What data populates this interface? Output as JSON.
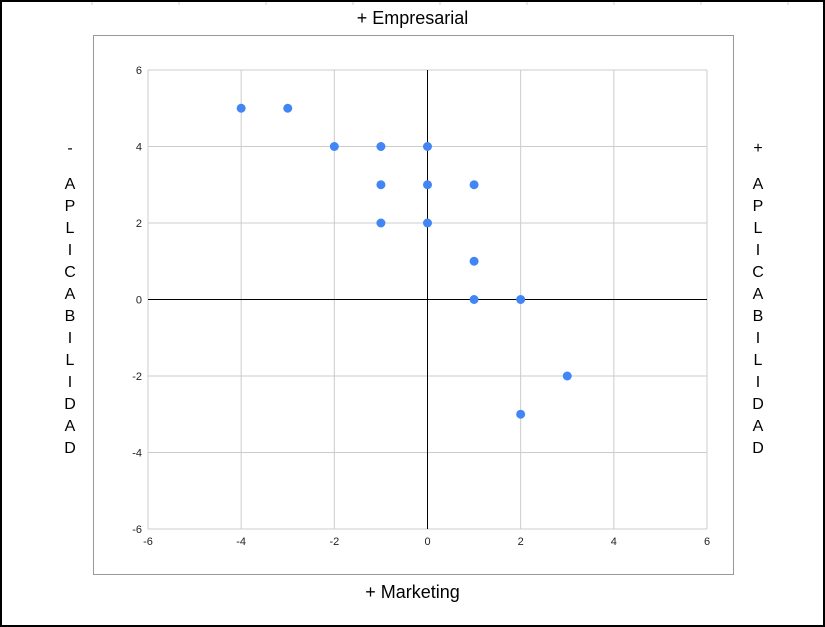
{
  "labels": {
    "top": "+ Empresarial",
    "bottom": "+ Marketing",
    "left_sign": "-",
    "right_sign": "+",
    "side_letters": [
      "A",
      "P",
      "L",
      "I",
      "C",
      "A",
      "B",
      "I",
      "L",
      "I",
      "D",
      "A",
      "D"
    ]
  },
  "colors": {
    "point": "#4285f4",
    "grid": "#cccccc",
    "axis": "#000000",
    "border": "#999999"
  },
  "chart_data": {
    "type": "scatter",
    "title": "",
    "xlabel": "",
    "ylabel": "",
    "xlim": [
      -6,
      6
    ],
    "ylim": [
      -6,
      6
    ],
    "x_ticks": [
      "-6",
      "-4",
      "-2",
      "0",
      "2",
      "4",
      "6"
    ],
    "y_ticks": [
      "-6",
      "-4",
      "-2",
      "0",
      "2",
      "4",
      "6"
    ],
    "grid": true,
    "legend": "none",
    "points": [
      {
        "x": -4,
        "y": 5
      },
      {
        "x": -3,
        "y": 5
      },
      {
        "x": -2,
        "y": 4
      },
      {
        "x": -1,
        "y": 4
      },
      {
        "x": 0,
        "y": 4
      },
      {
        "x": -1,
        "y": 3
      },
      {
        "x": 0,
        "y": 3
      },
      {
        "x": 1,
        "y": 3
      },
      {
        "x": -1,
        "y": 2
      },
      {
        "x": 0,
        "y": 2
      },
      {
        "x": 1,
        "y": 1
      },
      {
        "x": 1,
        "y": 0
      },
      {
        "x": 2,
        "y": 0
      },
      {
        "x": 3,
        "y": -2
      },
      {
        "x": 2,
        "y": -3
      }
    ]
  }
}
